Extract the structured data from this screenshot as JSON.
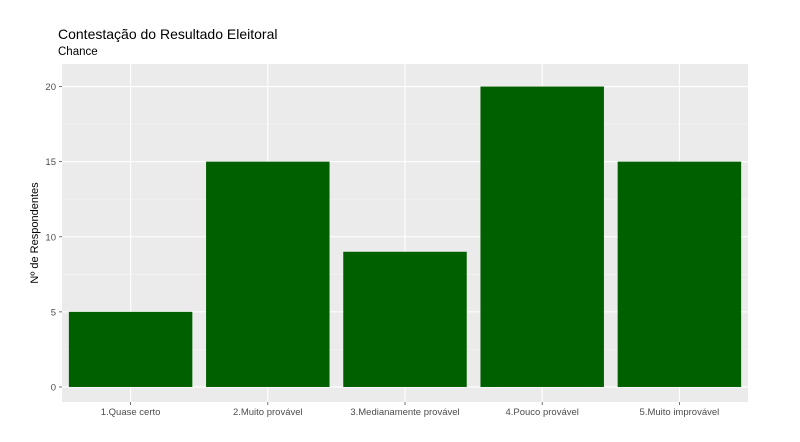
{
  "chart_data": {
    "type": "bar",
    "title": "Contestação do Resultado Eleitoral",
    "subtitle": "Chance",
    "xlabel": "",
    "ylabel": "Nº de Respondentes",
    "categories": [
      "1.Quase certo",
      "2.Muito provável",
      "3.Medianamente provável",
      "4.Pouco provável",
      "5.Muito improvável"
    ],
    "values": [
      5,
      15,
      9,
      20,
      15
    ],
    "ylim": [
      -1,
      21.5
    ],
    "yticks": [
      0,
      5,
      10,
      15,
      20
    ],
    "grid": true,
    "colors": {
      "bar": "#006000",
      "panel": "#ebebeb",
      "grid_major": "#ffffff",
      "grid_minor": "#f5f5f5"
    }
  }
}
